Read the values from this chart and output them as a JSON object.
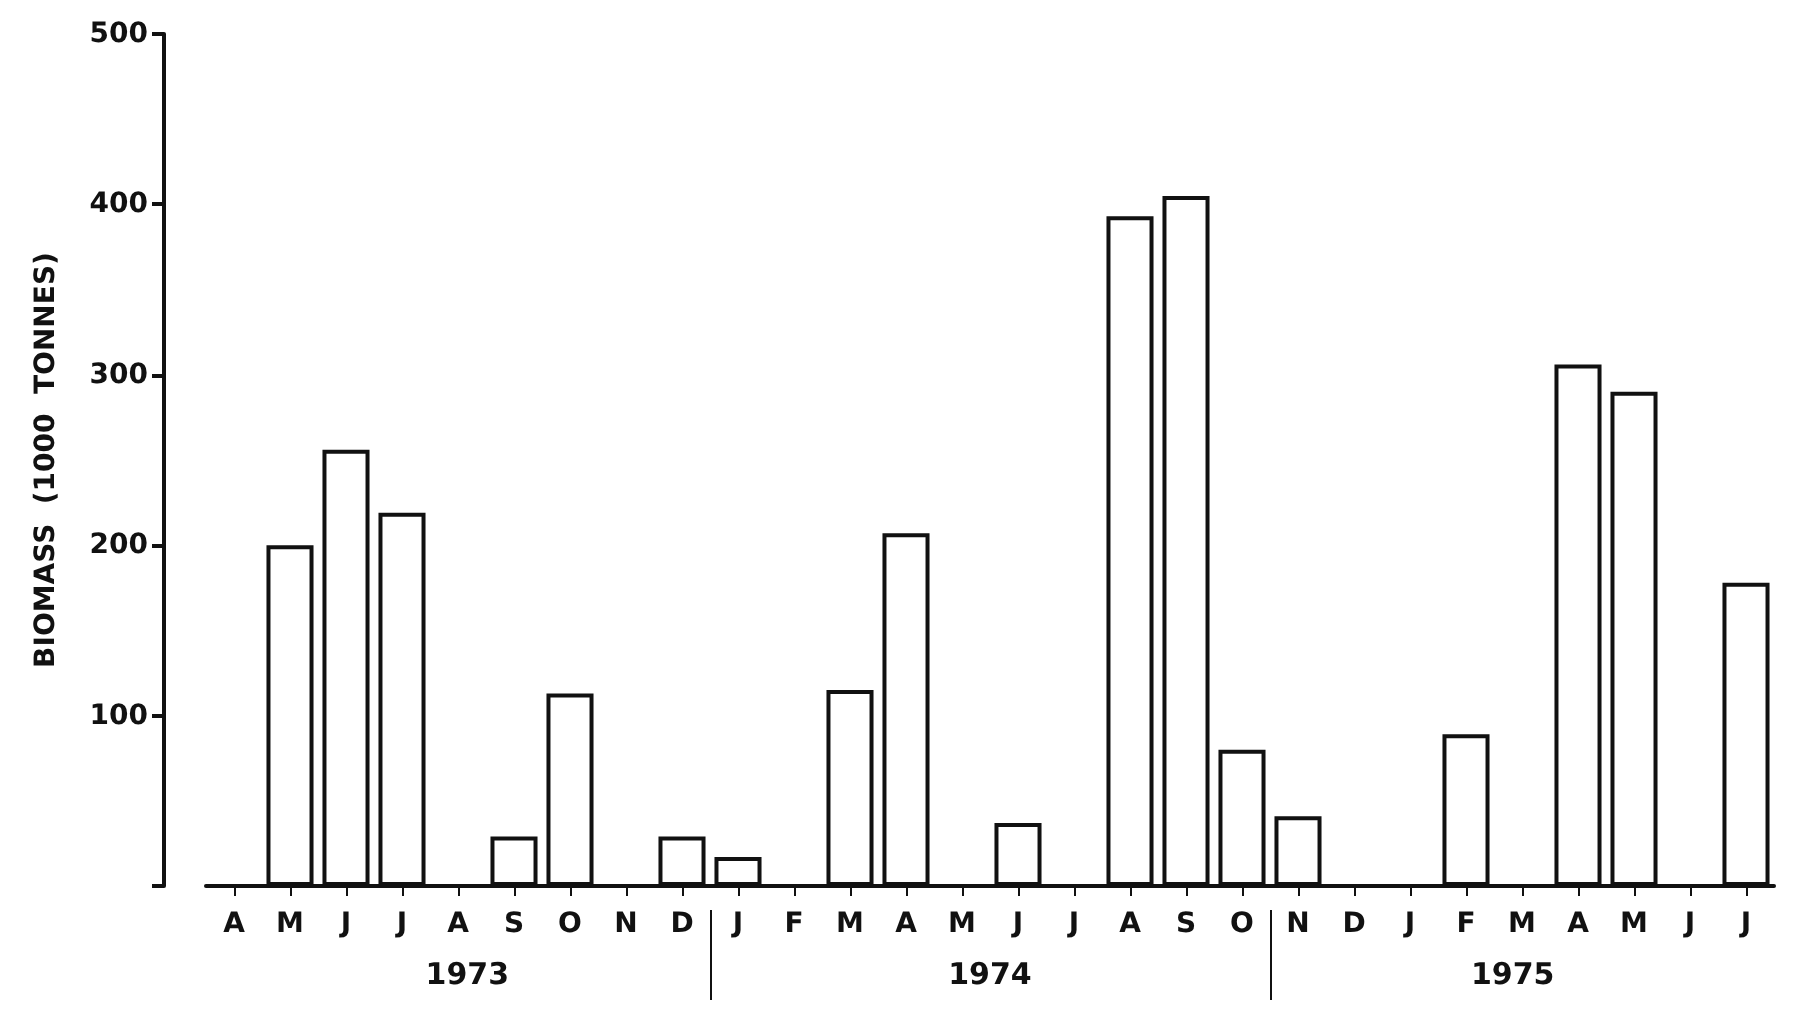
{
  "chart_data": {
    "type": "bar",
    "ylabel": "BIOMASS  (1000  TONNES)",
    "categories": [
      "A",
      "M",
      "J",
      "J",
      "A",
      "S",
      "O",
      "N",
      "D",
      "J",
      "F",
      "M",
      "A",
      "M",
      "J",
      "J",
      "A",
      "S",
      "O",
      "N",
      "D",
      "J",
      "F",
      "M",
      "A",
      "M",
      "J",
      "J"
    ],
    "values": [
      null,
      200,
      256,
      219,
      null,
      29,
      113,
      null,
      29,
      17,
      null,
      115,
      207,
      null,
      37,
      null,
      393,
      405,
      80,
      41,
      null,
      null,
      89,
      null,
      306,
      290,
      null,
      178
    ],
    "color": "#ffffff",
    "ylim": [
      0,
      500
    ],
    "yticks": [
      {
        "value": 0,
        "label": null
      },
      100,
      200,
      300,
      400,
      500
    ],
    "grid": false,
    "annotations": [
      "1973",
      "1974",
      "1975"
    ]
  }
}
